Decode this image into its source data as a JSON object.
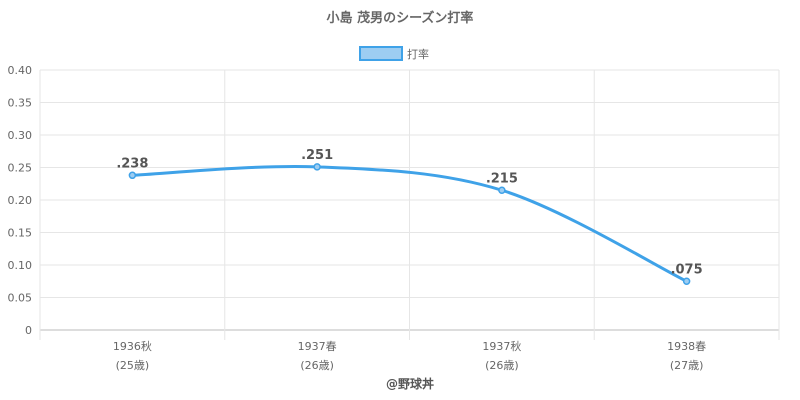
{
  "chart_data": {
    "type": "line",
    "title": "小島 茂男のシーズン打率",
    "categories": [
      "1936秋",
      "1937春",
      "1937秋",
      "1938春"
    ],
    "category_sublabels": [
      "(25歳)",
      "(26歳)",
      "(26歳)",
      "(27歳)"
    ],
    "series": [
      {
        "name": "打率",
        "values": [
          0.238,
          0.251,
          0.215,
          0.075
        ],
        "labels": [
          ".238",
          ".251",
          ".215",
          ".075"
        ],
        "color": "#3fa2e8",
        "fill": "#9dcdf2"
      }
    ],
    "ylim": [
      0,
      0.4
    ],
    "yticks": [
      0,
      0.05,
      0.1,
      0.15,
      0.2,
      0.25,
      0.3,
      0.35,
      0.4
    ],
    "ytick_labels": [
      "0",
      "0.05",
      "0.10",
      "0.15",
      "0.20",
      "0.25",
      "0.30",
      "0.35",
      "0.40"
    ],
    "grid": true,
    "legend_position": "top-center"
  },
  "credit": "@野球丼"
}
